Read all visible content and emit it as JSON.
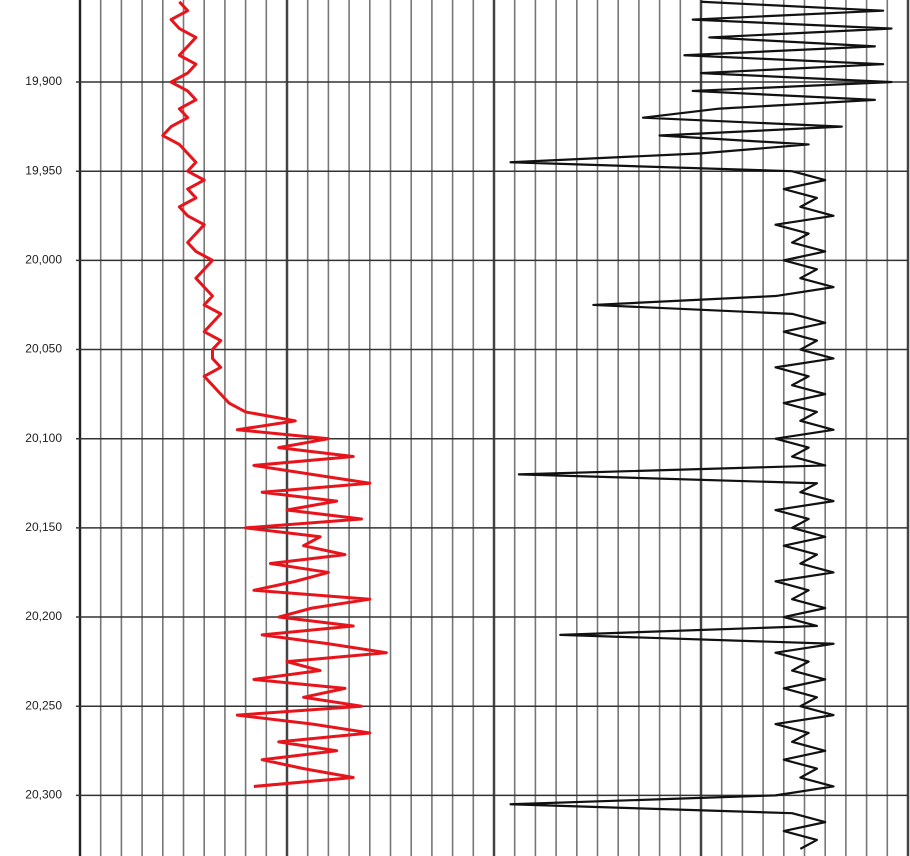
{
  "chart_data": {
    "type": "line",
    "ylim": [
      19854,
      20334
    ],
    "yticks": [
      {
        "value": 19900,
        "label": "19,900"
      },
      {
        "value": 19950,
        "label": "19,950"
      },
      {
        "value": 20000,
        "label": "20,000"
      },
      {
        "value": 20050,
        "label": "20,050"
      },
      {
        "value": 20100,
        "label": "20,100"
      },
      {
        "value": 20150,
        "label": "20,150"
      },
      {
        "value": 20200,
        "label": "20,200"
      },
      {
        "value": 20250,
        "label": "20,250"
      },
      {
        "value": 20300,
        "label": "20,300"
      }
    ],
    "xlim": [
      0,
      100
    ],
    "depth": [
      19855,
      19860,
      19865,
      19870,
      19875,
      19880,
      19885,
      19890,
      19895,
      19900,
      19905,
      19910,
      19915,
      19920,
      19925,
      19930,
      19935,
      19940,
      19945,
      19950,
      19955,
      19960,
      19965,
      19970,
      19975,
      19980,
      19985,
      19990,
      19995,
      20000,
      20005,
      20010,
      20015,
      20020,
      20025,
      20030,
      20035,
      20040,
      20045,
      20050,
      20055,
      20060,
      20065,
      20070,
      20075,
      20080,
      20085,
      20090,
      20095,
      20100,
      20105,
      20110,
      20115,
      20120,
      20125,
      20130,
      20135,
      20140,
      20145,
      20150,
      20155,
      20160,
      20165,
      20170,
      20175,
      20180,
      20185,
      20190,
      20195,
      20200,
      20205,
      20210,
      20215,
      20220,
      20225,
      20230,
      20235,
      20240,
      20245,
      20250,
      20255,
      20260,
      20265,
      20270,
      20275,
      20280,
      20285,
      20290,
      20295,
      20300,
      20305,
      20310,
      20315,
      20320,
      20325,
      20330
    ],
    "series": [
      {
        "color": "#e8141b",
        "values": [
          12,
          13,
          11,
          12,
          14,
          13,
          12,
          14,
          13,
          11,
          13,
          14,
          12,
          13,
          11,
          10,
          12,
          13,
          14,
          13,
          15,
          13,
          14,
          12,
          13,
          15,
          14,
          13,
          14,
          16,
          15,
          14,
          15,
          16,
          15,
          17,
          16,
          15,
          17,
          16,
          16,
          17,
          15,
          16,
          17,
          18,
          20,
          26,
          19,
          30,
          24,
          33,
          21,
          28,
          35,
          22,
          31,
          25,
          34,
          20,
          29,
          27,
          32,
          23,
          30,
          26,
          21,
          35,
          28,
          24,
          33,
          22,
          30,
          37,
          25,
          29,
          21,
          32,
          27,
          34,
          19,
          28,
          35,
          24,
          31,
          22,
          27,
          33,
          21,
          null,
          null,
          null,
          null,
          null,
          null,
          null
        ]
      },
      {
        "color": "#111111",
        "values": [
          75,
          97,
          74,
          98,
          76,
          96,
          73,
          97,
          75,
          98,
          74,
          96,
          77,
          68,
          92,
          70,
          88,
          75,
          52,
          86,
          90,
          85,
          89,
          87,
          91,
          84,
          88,
          86,
          90,
          85,
          89,
          87,
          91,
          84,
          62,
          86,
          90,
          85,
          89,
          87,
          91,
          84,
          88,
          86,
          90,
          85,
          89,
          87,
          91,
          84,
          88,
          86,
          90,
          53,
          89,
          87,
          91,
          84,
          88,
          86,
          90,
          85,
          89,
          87,
          91,
          84,
          88,
          86,
          90,
          85,
          89,
          58,
          91,
          84,
          88,
          86,
          90,
          85,
          89,
          87,
          91,
          84,
          88,
          86,
          90,
          85,
          89,
          87,
          91,
          84,
          52,
          86,
          90,
          85,
          89,
          87
        ]
      }
    ]
  }
}
